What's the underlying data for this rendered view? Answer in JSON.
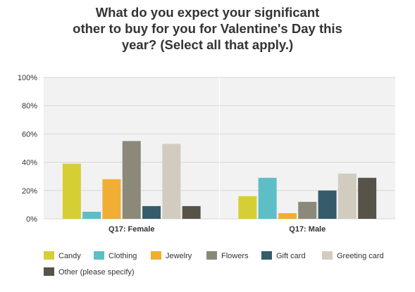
{
  "chart_data": {
    "type": "bar",
    "title_lines": [
      "What do you expect your significant",
      "other to buy for you for Valentine's Day this",
      "year? (Select all that apply.)"
    ],
    "categories": [
      "Q17: Female",
      "Q17: Male"
    ],
    "y_ticks": [
      "100%",
      "80%",
      "60%",
      "40%",
      "20%",
      "0%"
    ],
    "ylim": [
      0,
      100
    ],
    "unit": "%",
    "grid": true,
    "legend_position": "bottom",
    "series": [
      {
        "name": "Candy",
        "color": "#d5cf35",
        "values": [
          39,
          16
        ]
      },
      {
        "name": "Clothing",
        "color": "#5ebec6",
        "values": [
          5,
          29
        ]
      },
      {
        "name": "Jewelry",
        "color": "#f0ae35",
        "values": [
          28,
          4
        ]
      },
      {
        "name": "Flowers",
        "color": "#8c897a",
        "values": [
          55,
          12
        ]
      },
      {
        "name": "Gift card",
        "color": "#355c6b",
        "values": [
          9,
          20
        ]
      },
      {
        "name": "Greeting card",
        "color": "#d2ccc0",
        "values": [
          53,
          32
        ]
      },
      {
        "name": "Other (please specify)",
        "color": "#575349",
        "values": [
          9,
          29
        ]
      }
    ]
  }
}
